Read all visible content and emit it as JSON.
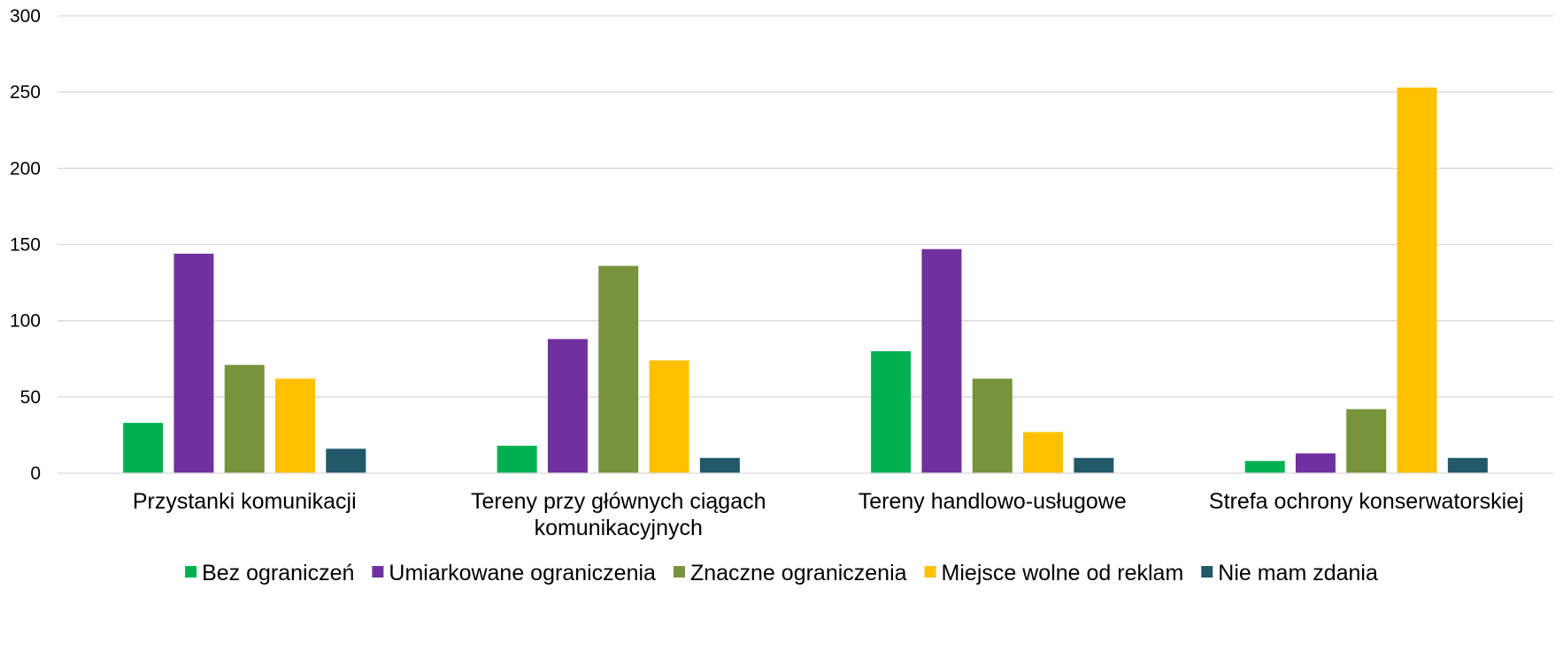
{
  "chart_data": {
    "type": "bar",
    "title": "",
    "xlabel": "",
    "ylabel": "",
    "ylim": [
      0,
      300
    ],
    "yticks": [
      0,
      50,
      100,
      150,
      200,
      250,
      300
    ],
    "grid": true,
    "legend_position": "bottom",
    "categories": [
      [
        "Przystanki komunikacji"
      ],
      [
        "Tereny przy głównych ciągach",
        "komunikacyjnych"
      ],
      [
        "Tereny handlowo-usługowe"
      ],
      [
        "Strefa ochrony konserwatorskiej"
      ]
    ],
    "series": [
      {
        "name": "Bez ograniczeń",
        "color": "#00b050",
        "values": [
          33,
          18,
          80,
          8
        ]
      },
      {
        "name": "Umiarkowane ograniczenia",
        "color": "#7030a0",
        "values": [
          144,
          88,
          147,
          13
        ]
      },
      {
        "name": "Znaczne ograniczenia",
        "color": "#77933c",
        "values": [
          71,
          136,
          62,
          42
        ]
      },
      {
        "name": "Miejsce wolne od reklam",
        "color": "#ffc000",
        "values": [
          62,
          74,
          27,
          253
        ]
      },
      {
        "name": "Nie mam zdania",
        "color": "#215968",
        "values": [
          16,
          10,
          10,
          10
        ]
      }
    ],
    "gridline_color": "#d9d9d9"
  }
}
